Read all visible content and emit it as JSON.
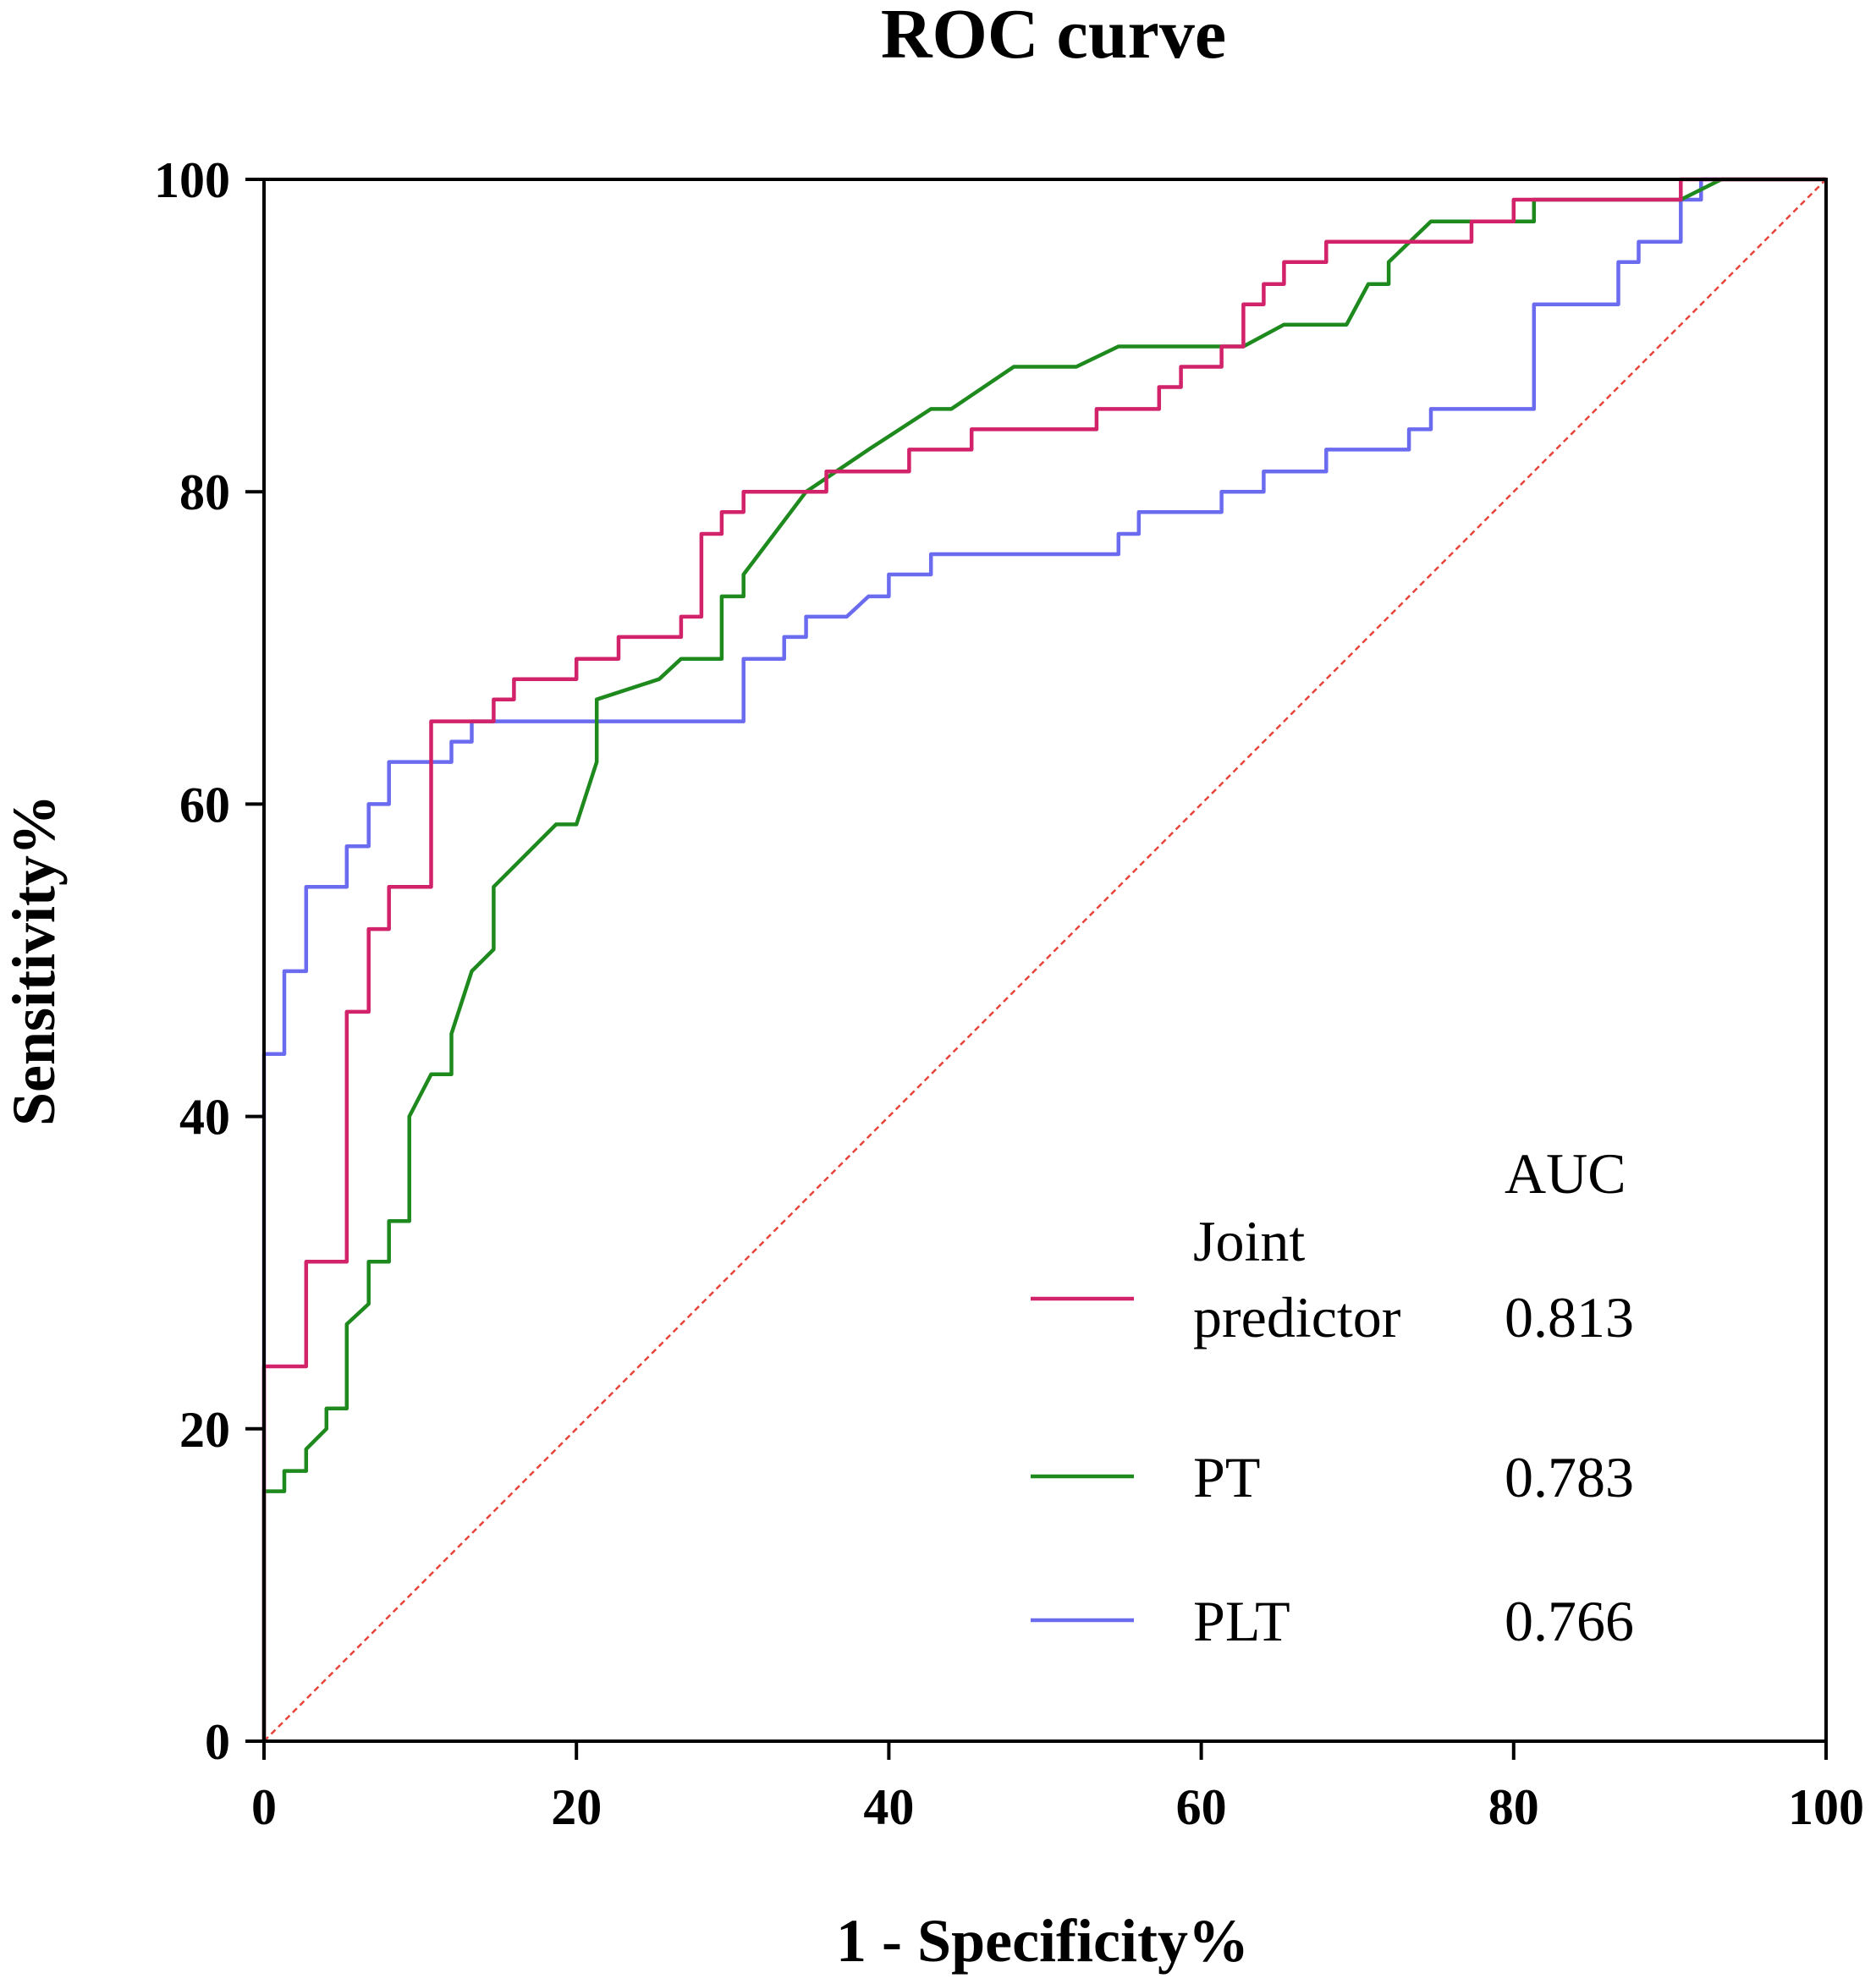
{
  "chart_data": {
    "type": "line",
    "title": "ROC curve",
    "xlabel": "1 - Specificity%",
    "ylabel": "Sensitivity%",
    "xlim": [
      0,
      100
    ],
    "ylim": [
      0,
      100
    ],
    "xticks": [
      0,
      20,
      40,
      60,
      80,
      100
    ],
    "yticks": [
      0,
      20,
      40,
      60,
      80,
      100
    ],
    "xtick_labels": [
      "0",
      "20",
      "40",
      "60",
      "80",
      "100"
    ],
    "ytick_labels": [
      "0",
      "20",
      "40",
      "60",
      "80",
      "100"
    ],
    "legend": {
      "header": "AUC",
      "placement": "bottom-right"
    },
    "reference_line": {
      "name": "chance",
      "color": "#e8443a",
      "points": [
        [
          0,
          0
        ],
        [
          100,
          100
        ]
      ]
    },
    "series": [
      {
        "name": "Joint predictor",
        "label_lines": [
          "Joint",
          "predictor"
        ],
        "auc": "0.813",
        "color": "#d1226a",
        "points": [
          [
            0,
            0
          ],
          [
            0,
            24
          ],
          [
            2.7,
            24
          ],
          [
            2.7,
            30.7
          ],
          [
            5.3,
            30.7
          ],
          [
            5.3,
            46.7
          ],
          [
            6.7,
            46.7
          ],
          [
            6.7,
            52
          ],
          [
            8,
            52
          ],
          [
            8,
            54.7
          ],
          [
            10.7,
            54.7
          ],
          [
            10.7,
            65.3
          ],
          [
            14.7,
            65.3
          ],
          [
            14.7,
            66.7
          ],
          [
            16,
            66.7
          ],
          [
            16,
            68
          ],
          [
            20,
            68
          ],
          [
            20,
            69.3
          ],
          [
            22.7,
            69.3
          ],
          [
            22.7,
            70.7
          ],
          [
            26.7,
            70.7
          ],
          [
            26.7,
            72
          ],
          [
            28,
            72
          ],
          [
            28,
            77.3
          ],
          [
            29.3,
            77.3
          ],
          [
            29.3,
            78.7
          ],
          [
            30.7,
            78.7
          ],
          [
            30.7,
            80
          ],
          [
            36,
            80
          ],
          [
            36,
            81.3
          ],
          [
            41.3,
            81.3
          ],
          [
            41.3,
            82.7
          ],
          [
            45.3,
            82.7
          ],
          [
            45.3,
            84
          ],
          [
            53.3,
            84
          ],
          [
            53.3,
            85.3
          ],
          [
            57.3,
            85.3
          ],
          [
            57.3,
            86.7
          ],
          [
            58.7,
            86.7
          ],
          [
            58.7,
            88
          ],
          [
            61.3,
            88
          ],
          [
            61.3,
            89.3
          ],
          [
            62.7,
            89.3
          ],
          [
            62.7,
            92
          ],
          [
            64,
            92
          ],
          [
            64,
            93.3
          ],
          [
            65.3,
            93.3
          ],
          [
            65.3,
            94.7
          ],
          [
            68,
            94.7
          ],
          [
            68,
            96
          ],
          [
            77.3,
            96
          ],
          [
            77.3,
            97.3
          ],
          [
            80,
            97.3
          ],
          [
            80,
            98.7
          ],
          [
            90.7,
            98.7
          ],
          [
            90.7,
            100
          ],
          [
            100,
            100
          ]
        ]
      },
      {
        "name": "PT",
        "label_lines": [
          "PT"
        ],
        "auc": "0.783",
        "color": "#1e8a1e",
        "points": [
          [
            0,
            0
          ],
          [
            0,
            16
          ],
          [
            1.3,
            16
          ],
          [
            1.3,
            17.3
          ],
          [
            2.7,
            17.3
          ],
          [
            2.7,
            18.7
          ],
          [
            4,
            20
          ],
          [
            4,
            21.3
          ],
          [
            5.3,
            21.3
          ],
          [
            5.3,
            26.7
          ],
          [
            6.7,
            28
          ],
          [
            6.7,
            30.7
          ],
          [
            8,
            30.7
          ],
          [
            8,
            33.3
          ],
          [
            9.3,
            33.3
          ],
          [
            9.3,
            40
          ],
          [
            10.7,
            42.7
          ],
          [
            12,
            42.7
          ],
          [
            12,
            45.3
          ],
          [
            13.3,
            49.3
          ],
          [
            14.7,
            50.7
          ],
          [
            14.7,
            54.7
          ],
          [
            18.7,
            58.7
          ],
          [
            20,
            58.7
          ],
          [
            21.3,
            62.7
          ],
          [
            21.3,
            66.7
          ],
          [
            25.3,
            68
          ],
          [
            26.7,
            69.3
          ],
          [
            29.3,
            69.3
          ],
          [
            29.3,
            73.3
          ],
          [
            30.7,
            73.3
          ],
          [
            30.7,
            74.7
          ],
          [
            34.7,
            80
          ],
          [
            38.7,
            82.7
          ],
          [
            42.7,
            85.3
          ],
          [
            44,
            85.3
          ],
          [
            48,
            88
          ],
          [
            52,
            88
          ],
          [
            54.7,
            89.3
          ],
          [
            62.7,
            89.3
          ],
          [
            65.3,
            90.7
          ],
          [
            69.3,
            90.7
          ],
          [
            70.7,
            93.3
          ],
          [
            72,
            93.3
          ],
          [
            72,
            94.7
          ],
          [
            74.7,
            97.3
          ],
          [
            81.3,
            97.3
          ],
          [
            81.3,
            98.7
          ],
          [
            90.7,
            98.7
          ],
          [
            93.3,
            100
          ],
          [
            100,
            100
          ]
        ]
      },
      {
        "name": "PLT",
        "label_lines": [
          "PLT"
        ],
        "auc": "0.766",
        "color": "#6b6bf0",
        "points": [
          [
            0,
            0
          ],
          [
            0,
            44
          ],
          [
            1.3,
            44
          ],
          [
            1.3,
            49.3
          ],
          [
            2.7,
            49.3
          ],
          [
            2.7,
            54.7
          ],
          [
            5.3,
            54.7
          ],
          [
            5.3,
            57.3
          ],
          [
            6.7,
            57.3
          ],
          [
            6.7,
            60
          ],
          [
            8,
            60
          ],
          [
            8,
            62.7
          ],
          [
            12,
            62.7
          ],
          [
            12,
            64
          ],
          [
            13.3,
            64
          ],
          [
            13.3,
            65.3
          ],
          [
            30.7,
            65.3
          ],
          [
            30.7,
            69.3
          ],
          [
            33.3,
            69.3
          ],
          [
            33.3,
            70.7
          ],
          [
            34.7,
            70.7
          ],
          [
            34.7,
            72
          ],
          [
            37.3,
            72
          ],
          [
            38.7,
            73.3
          ],
          [
            40,
            73.3
          ],
          [
            40,
            74.7
          ],
          [
            42.7,
            74.7
          ],
          [
            42.7,
            76
          ],
          [
            54.7,
            76
          ],
          [
            54.7,
            77.3
          ],
          [
            56,
            77.3
          ],
          [
            56,
            78.7
          ],
          [
            61.3,
            78.7
          ],
          [
            61.3,
            80
          ],
          [
            62.7,
            80
          ],
          [
            64,
            80
          ],
          [
            64,
            81.3
          ],
          [
            68,
            81.3
          ],
          [
            68,
            82.7
          ],
          [
            73.3,
            82.7
          ],
          [
            73.3,
            84
          ],
          [
            74.7,
            84
          ],
          [
            74.7,
            85.3
          ],
          [
            81.3,
            85.3
          ],
          [
            81.3,
            92
          ],
          [
            86.7,
            92
          ],
          [
            86.7,
            94.7
          ],
          [
            88,
            94.7
          ],
          [
            88,
            96
          ],
          [
            90.7,
            96
          ],
          [
            90.7,
            98.7
          ],
          [
            92,
            98.7
          ],
          [
            92,
            100
          ],
          [
            100,
            100
          ]
        ]
      }
    ]
  }
}
